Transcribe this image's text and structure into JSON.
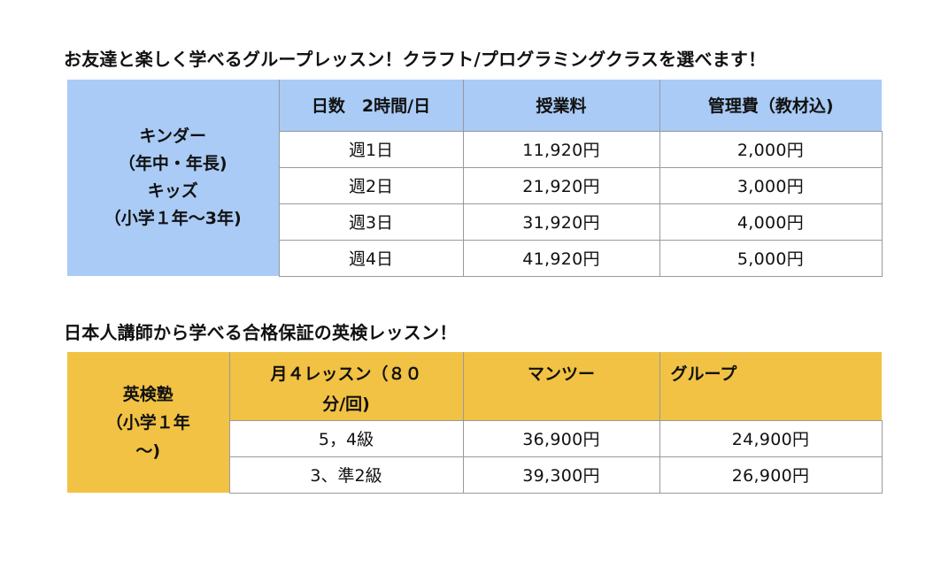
{
  "heading1": "お友達と楽しく学べるグループレッスン！クラフト/プログラミングクラスを選べます！",
  "heading2": "日本人講師から学べる合格保証の英検レッスン！",
  "table1": {
    "side_label": [
      "キンダー",
      "（年中・年長)",
      "キッズ",
      "（小学１年〜3年)"
    ],
    "headers": [
      "日数　2時間/日",
      "授業料",
      "管理費（教材込)"
    ],
    "rows": [
      [
        "週1日",
        "11,920円",
        "2,000円"
      ],
      [
        "週2日",
        "21,920円",
        "3,000円"
      ],
      [
        "週3日",
        "31,920円",
        "4,000円"
      ],
      [
        "週4日",
        "41,920円",
        "5,000円"
      ]
    ],
    "colors": {
      "header_bg": "#a9cbf5"
    }
  },
  "table2": {
    "side_label": [
      "英検塾",
      "（小学１年",
      "〜)"
    ],
    "headers": [
      "月４レッスン（８０",
      "分/回)",
      "マンツー",
      "グループ"
    ],
    "rows": [
      [
        "5，4級",
        "36,900円",
        "24,900円"
      ],
      [
        "3、準2級",
        "39,300円",
        "26,900円"
      ]
    ],
    "colors": {
      "header_bg": "#f1c243"
    }
  }
}
